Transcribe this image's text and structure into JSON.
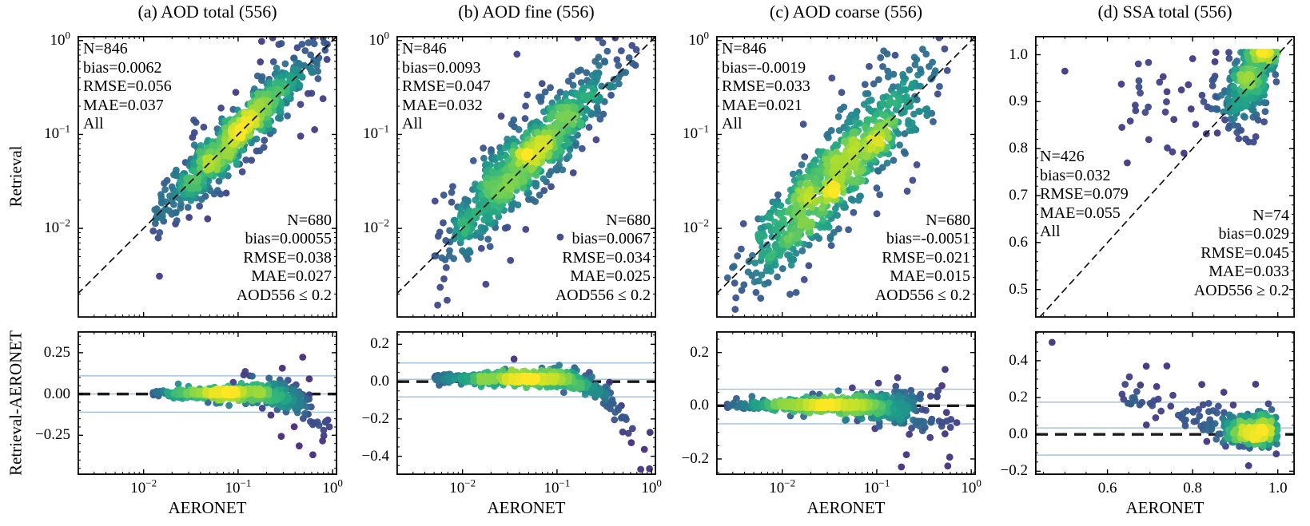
{
  "figure": {
    "background": "#ffffff",
    "point_colormap": "viridis",
    "envelope_line_color": "#a6c3de",
    "reference_line_color": "#111111"
  },
  "labels": {
    "ylabel_top": "Retrieval",
    "ylabel_bottom": "Retrieval-AERONET",
    "xlabel": "AERONET"
  },
  "panels": [
    {
      "title": "(a) AOD total (556)",
      "stats_all": [
        "N=846",
        "bias=0.0062",
        "RMSE=0.056",
        "MAE=0.037",
        "All"
      ],
      "stats_subset": [
        "N=680",
        "bias=0.00055",
        "RMSE=0.038",
        "MAE=0.027",
        "AOD556 ≤ 0.2"
      ]
    },
    {
      "title": "(b) AOD fine (556)",
      "stats_all": [
        "N=846",
        "bias=0.0093",
        "RMSE=0.047",
        "MAE=0.032",
        "All"
      ],
      "stats_subset": [
        "N=680",
        "bias=0.0067",
        "RMSE=0.034",
        "MAE=0.025",
        "AOD556 ≤ 0.2"
      ]
    },
    {
      "title": "(c) AOD coarse (556)",
      "stats_all": [
        "N=846",
        "bias=-0.0019",
        "RMSE=0.033",
        "MAE=0.021",
        "All"
      ],
      "stats_subset": [
        "N=680",
        "bias=-0.0051",
        "RMSE=0.021",
        "MAE=0.015",
        "AOD556 ≤ 0.2"
      ]
    },
    {
      "title": "(d) SSA total (556)",
      "stats_all": [
        "N=426",
        "bias=0.032",
        "RMSE=0.079",
        "MAE=0.055",
        "All"
      ],
      "stats_subset": [
        "N=74",
        "bias=0.029",
        "RMSE=0.045",
        "MAE=0.033",
        "AOD556 ≥ 0.2"
      ]
    }
  ],
  "chart_data": [
    {
      "column": "a",
      "title": "(a) AOD total (556)",
      "top": {
        "type": "scatter",
        "xscale": "log",
        "yscale": "log",
        "xlabel": "AERONET",
        "ylabel": "Retrieval",
        "xlim": [
          0.002,
          1.12
        ],
        "ylim": [
          0.00112,
          1.12
        ],
        "xticks": [
          {
            "v": 0.01,
            "label": "10^−2"
          },
          {
            "v": 0.1,
            "label": "10^−1"
          },
          {
            "v": 1,
            "label": "10^0"
          }
        ],
        "yticks": [
          {
            "v": 1,
            "label": "10^0"
          },
          {
            "v": 0.1,
            "label": "10^−1"
          },
          {
            "v": 0.01,
            "label": "10^−2"
          }
        ],
        "x_minor": "log",
        "y_minor": "log",
        "diag": true,
        "colormap": "viridis",
        "stats": {
          "N": 846,
          "bias": 0.0062,
          "RMSE": 0.056,
          "MAE": 0.037,
          "group": "All"
        },
        "stats_subset": {
          "N": 680,
          "bias": 0.00055,
          "RMSE": 0.038,
          "MAE": 0.027,
          "group": "AOD556 ≤ 0.2"
        },
        "cloud": {
          "kind": "aod_top",
          "seed": 11,
          "n": 846,
          "mu": -1.02,
          "sig": 0.4,
          "lo": -1.9,
          "hi": 0.0,
          "noise": 0.13,
          "out": 0.1,
          "outN": 0.33,
          "bias": 0.01
        }
      },
      "bottom": {
        "type": "scatter",
        "xscale": "log",
        "yscale": "linear",
        "xlabel": "AERONET",
        "ylabel": "Retrieval-AERONET",
        "xlim": [
          0.002,
          1.12
        ],
        "ylim": [
          -0.49,
          0.38
        ],
        "xticks": [
          {
            "v": 0.01,
            "label": "10^−2"
          },
          {
            "v": 0.1,
            "label": "10^−1"
          },
          {
            "v": 1,
            "label": "10^0"
          }
        ],
        "yticks": [
          {
            "v": 0.25,
            "label": "0.25"
          },
          {
            "v": 0,
            "label": "0.00"
          },
          {
            "v": -0.25,
            "label": "−0.25"
          }
        ],
        "x_minor": "log",
        "y_minor": 0.05,
        "zero_dash": true,
        "envelopes": [
          0.11,
          0.0,
          -0.11
        ],
        "cloud": {
          "kind": "aod_diff",
          "seed": 12,
          "n": 846,
          "mu": -1.02,
          "sig": 0.4,
          "lo": -1.9,
          "hi": 0.0,
          "base": 0.008,
          "slope": 0.1,
          "mean0": 0.004,
          "trendX0": 0.25,
          "trend": -0.28,
          "out": 0.08,
          "outMult": 2.6
        }
      }
    },
    {
      "column": "b",
      "title": "(b) AOD fine (556)",
      "top": {
        "type": "scatter",
        "xscale": "log",
        "yscale": "log",
        "xlabel": "AERONET",
        "ylabel": "Retrieval",
        "xlim": [
          0.002,
          1.12
        ],
        "ylim": [
          0.00112,
          1.12
        ],
        "xticks": [
          {
            "v": 0.01,
            "label": "10^−2"
          },
          {
            "v": 0.1,
            "label": "10^−1"
          },
          {
            "v": 1,
            "label": "10^0"
          }
        ],
        "yticks": [
          {
            "v": 1,
            "label": "10^0"
          },
          {
            "v": 0.1,
            "label": "10^−1"
          },
          {
            "v": 0.01,
            "label": "10^−2"
          }
        ],
        "x_minor": "log",
        "y_minor": "log",
        "diag": true,
        "colormap": "viridis",
        "stats": {
          "N": 846,
          "bias": 0.0093,
          "RMSE": 0.047,
          "MAE": 0.032,
          "group": "All"
        },
        "stats_subset": {
          "N": 680,
          "bias": 0.0067,
          "RMSE": 0.034,
          "MAE": 0.025,
          "group": "AOD556 ≤ 0.2"
        },
        "cloud": {
          "kind": "aod_top",
          "seed": 21,
          "n": 846,
          "mu": -1.3,
          "sig": 0.46,
          "lo": -2.3,
          "hi": 0.0,
          "noise": 0.19,
          "out": 0.12,
          "outN": 0.42,
          "bias": 0.05
        }
      },
      "bottom": {
        "type": "scatter",
        "xscale": "log",
        "yscale": "linear",
        "xlabel": "AERONET",
        "ylabel": "Retrieval-AERONET",
        "xlim": [
          0.002,
          1.12
        ],
        "ylim": [
          -0.5,
          0.27
        ],
        "xticks": [
          {
            "v": 0.01,
            "label": "10^−2"
          },
          {
            "v": 0.1,
            "label": "10^−1"
          },
          {
            "v": 1,
            "label": "10^0"
          }
        ],
        "yticks": [
          {
            "v": 0.2,
            "label": "0.2"
          },
          {
            "v": 0,
            "label": "0.0"
          },
          {
            "v": -0.2,
            "label": "−0.2"
          },
          {
            "v": -0.4,
            "label": "−0.4"
          }
        ],
        "x_minor": "log",
        "y_minor": 0.05,
        "zero_dash": true,
        "envelopes": [
          0.1,
          0.012,
          -0.082
        ],
        "cloud": {
          "kind": "aod_diff",
          "seed": 22,
          "n": 846,
          "mu": -1.3,
          "sig": 0.46,
          "lo": -2.3,
          "hi": 0.0,
          "base": 0.012,
          "slope": 0.06,
          "mean0": 0.018,
          "trendX0": 0.12,
          "trend": -0.5,
          "out": 0.08,
          "outMult": 2.2
        }
      }
    },
    {
      "column": "c",
      "title": "(c) AOD coarse (556)",
      "top": {
        "type": "scatter",
        "xscale": "log",
        "yscale": "log",
        "xlabel": "AERONET",
        "ylabel": "Retrieval",
        "xlim": [
          0.002,
          1.12
        ],
        "ylim": [
          0.00112,
          1.12
        ],
        "xticks": [
          {
            "v": 0.01,
            "label": "10^−2"
          },
          {
            "v": 0.1,
            "label": "10^−1"
          },
          {
            "v": 1,
            "label": "10^0"
          }
        ],
        "yticks": [
          {
            "v": 1,
            "label": "10^0"
          },
          {
            "v": 0.1,
            "label": "10^−1"
          },
          {
            "v": 0.01,
            "label": "10^−2"
          }
        ],
        "x_minor": "log",
        "y_minor": "log",
        "diag": true,
        "colormap": "viridis",
        "stats": {
          "N": 846,
          "bias": -0.0019,
          "RMSE": 0.033,
          "MAE": 0.021,
          "group": "All"
        },
        "stats_subset": {
          "N": 680,
          "bias": -0.0051,
          "RMSE": 0.021,
          "MAE": 0.015,
          "group": "AOD556 ≤ 0.2"
        },
        "cloud": {
          "kind": "aod_top",
          "seed": 31,
          "n": 846,
          "mu": -1.42,
          "sig": 0.5,
          "lo": -2.6,
          "hi": -0.15,
          "noise": 0.23,
          "out": 0.12,
          "outN": 0.45,
          "bias": -0.02
        }
      },
      "bottom": {
        "type": "scatter",
        "xscale": "log",
        "yscale": "linear",
        "xlabel": "AERONET",
        "ylabel": "Retrieval-AERONET",
        "xlim": [
          0.002,
          1.12
        ],
        "ylim": [
          -0.26,
          0.28
        ],
        "xticks": [
          {
            "v": 0.01,
            "label": "10^−2"
          },
          {
            "v": 0.1,
            "label": "10^−1"
          },
          {
            "v": 1,
            "label": "10^0"
          }
        ],
        "yticks": [
          {
            "v": 0.2,
            "label": "0.2"
          },
          {
            "v": 0,
            "label": "0.0"
          },
          {
            "v": -0.2,
            "label": "−0.2"
          }
        ],
        "x_minor": "log",
        "y_minor": 0.05,
        "zero_dash": true,
        "envelopes": [
          0.062,
          0.002,
          -0.068
        ],
        "cloud": {
          "kind": "aod_diff",
          "seed": 32,
          "n": 846,
          "mu": -1.42,
          "sig": 0.5,
          "lo": -2.6,
          "hi": -0.15,
          "base": 0.007,
          "slope": 0.16,
          "mean0": 0.002,
          "trendX0": 0.1,
          "trend": -0.15,
          "out": 0.1,
          "outMult": 2.0
        }
      }
    },
    {
      "column": "d",
      "title": "(d) SSA total (556)",
      "top": {
        "type": "scatter",
        "xscale": "linear",
        "yscale": "linear",
        "xlabel": "AERONET",
        "ylabel": "Retrieval",
        "xlim": [
          0.43,
          1.04
        ],
        "ylim": [
          0.44,
          1.04
        ],
        "xticks": [
          {
            "v": 0.6,
            "label": "0.6"
          },
          {
            "v": 0.8,
            "label": "0.8"
          },
          {
            "v": 1.0,
            "label": "1.0"
          }
        ],
        "yticks": [
          {
            "v": 1.0,
            "label": "1.0"
          },
          {
            "v": 0.9,
            "label": "0.9"
          },
          {
            "v": 0.8,
            "label": "0.8"
          },
          {
            "v": 0.7,
            "label": "0.7"
          },
          {
            "v": 0.6,
            "label": "0.6"
          },
          {
            "v": 0.5,
            "label": "0.5"
          }
        ],
        "x_minor": 0.05,
        "y_minor": 0.02,
        "diag": true,
        "colormap": "viridis",
        "stats": {
          "N": 426,
          "bias": 0.032,
          "RMSE": 0.079,
          "MAE": 0.055,
          "group": "All"
        },
        "stats_subset": {
          "N": 74,
          "bias": 0.029,
          "RMSE": 0.045,
          "MAE": 0.033,
          "group": "AOD556 ≥ 0.2"
        },
        "cloud": {
          "kind": "ssa_top",
          "seed": 41,
          "n": 426,
          "coreFrac": 0.78,
          "cx": 0.948,
          "csx": 0.038,
          "coreLo": 0.82,
          "bgLo": 0.63,
          "bgHi": 0.97,
          "bgPow": 1.5,
          "dBase": 0.02,
          "dX0": 0.9,
          "dSlope": 0.85,
          "sCore": 0.04,
          "sBg": 0.05,
          "out": 0.12,
          "outMult": 2.2,
          "yCap": 1.005,
          "stray": [
            0.5,
            0.965
          ]
        }
      },
      "bottom": {
        "type": "scatter",
        "xscale": "linear",
        "yscale": "linear",
        "xlabel": "AERONET",
        "ylabel": "Retrieval-AERONET",
        "xlim": [
          0.43,
          1.04
        ],
        "ylim": [
          -0.22,
          0.56
        ],
        "xticks": [
          {
            "v": 0.6,
            "label": "0.6"
          },
          {
            "v": 0.8,
            "label": "0.8"
          },
          {
            "v": 1.0,
            "label": "1.0"
          }
        ],
        "yticks": [
          {
            "v": 0.4,
            "label": "0.4"
          },
          {
            "v": 0.2,
            "label": "0.2"
          },
          {
            "v": 0,
            "label": "0.0"
          },
          {
            "v": -0.2,
            "label": "−0.2"
          }
        ],
        "x_minor": 0.05,
        "y_minor": 0.05,
        "zero_dash": true,
        "envelopes": [
          0.175,
          0.035,
          -0.112
        ],
        "cloud": {
          "kind": "ssa_diff",
          "seed": 42,
          "n": 426,
          "coreFrac": 0.78,
          "cx": 0.948,
          "csx": 0.038,
          "coreLo": 0.82,
          "bgLo": 0.63,
          "bgHi": 0.97,
          "bgPow": 1.5,
          "dBase": 0.02,
          "dX0": 0.9,
          "dSlope": 0.85,
          "sCore": 0.04,
          "sBg": 0.05,
          "out": 0.12,
          "outMult": 2.2,
          "stray": [
            0.47,
            0.5
          ]
        }
      }
    }
  ]
}
